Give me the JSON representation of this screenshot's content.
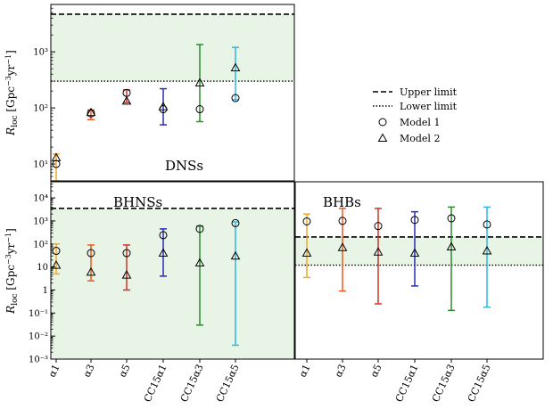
{
  "chart_data": [
    {
      "type": "scatter",
      "panel": "dns",
      "title": "DNSs",
      "ylabel": "R_loc [Gpc^-3 yr^-1]",
      "yscale": "log",
      "ylim": [
        5,
        7000
      ],
      "yticks": [
        {
          "v": 10,
          "label": "10¹"
        },
        {
          "v": 100,
          "label": "10²"
        },
        {
          "v": 1000,
          "label": "10³"
        }
      ],
      "categories": [
        "α1",
        "α3",
        "α5",
        "CC15α1",
        "CC15α3",
        "CC15α5"
      ],
      "colors": [
        "#f5a623",
        "#f0591e",
        "#d0352b",
        "#2a2db5",
        "#2e8b2e",
        "#2eb6e8"
      ],
      "upper_limit": 4700,
      "lower_limit": 300,
      "series": [
        {
          "name": "Model 1",
          "marker": "circle",
          "values": [
            10,
            80,
            185,
            95,
            95,
            150
          ]
        },
        {
          "name": "Model 2",
          "marker": "triangle",
          "values": [
            13,
            83,
            133,
            105,
            280,
            520
          ]
        }
      ],
      "errors": [
        {
          "lo": 5,
          "hi": 15
        },
        {
          "lo": 62,
          "hi": 92
        },
        {
          "lo": 125,
          "hi": 210
        },
        {
          "lo": 50,
          "hi": 220
        },
        {
          "lo": 57,
          "hi": 1350
        },
        {
          "lo": 140,
          "hi": 1200
        }
      ]
    },
    {
      "type": "scatter",
      "panel": "bhns",
      "title": "BHNSs",
      "ylabel": "R_loc [Gpc^-3 yr^-1]",
      "yscale": "log",
      "ylim": [
        0.001,
        50000
      ],
      "yticks": [
        {
          "v": 0.001,
          "label": "10⁻³"
        },
        {
          "v": 0.01,
          "label": "10⁻²"
        },
        {
          "v": 0.1,
          "label": "10⁻¹"
        },
        {
          "v": 1,
          "label": "1"
        },
        {
          "v": 10,
          "label": "10"
        },
        {
          "v": 100,
          "label": "10²"
        },
        {
          "v": 1000,
          "label": "10³"
        },
        {
          "v": 10000,
          "label": "10⁴"
        }
      ],
      "categories": [
        "α1",
        "α3",
        "α5",
        "CC15α1",
        "CC15α3",
        "CC15α5"
      ],
      "colors": [
        "#f5a623",
        "#f0591e",
        "#d0352b",
        "#2a2db5",
        "#2e8b2e",
        "#2eb6e8"
      ],
      "upper_limit": 3500,
      "lower_limit": null,
      "series": [
        {
          "name": "Model 1",
          "marker": "circle",
          "values": [
            50,
            40,
            40,
            240,
            450,
            800
          ]
        },
        {
          "name": "Model 2",
          "marker": "triangle",
          "values": [
            12,
            6,
            4.5,
            40,
            15,
            30
          ]
        }
      ],
      "errors": [
        {
          "lo": 5,
          "hi": 100
        },
        {
          "lo": 2.5,
          "hi": 90
        },
        {
          "lo": 1,
          "hi": 90
        },
        {
          "lo": 4,
          "hi": 450
        },
        {
          "lo": 0.03,
          "hi": 600
        },
        {
          "lo": 0.004,
          "hi": 900
        }
      ]
    },
    {
      "type": "scatter",
      "panel": "bhb",
      "title": "BHBs",
      "yscale": "log",
      "ylim": [
        0.001,
        50000
      ],
      "categories": [
        "α1",
        "α3",
        "α5",
        "CC15α1",
        "CC15α3",
        "CC15α5"
      ],
      "colors": [
        "#f5a623",
        "#f0591e",
        "#d0352b",
        "#2a2db5",
        "#2e8b2e",
        "#2eb6e8"
      ],
      "upper_limit": 200,
      "lower_limit": 12,
      "series": [
        {
          "name": "Model 1",
          "marker": "circle",
          "values": [
            950,
            1000,
            600,
            1100,
            1300,
            700
          ]
        },
        {
          "name": "Model 2",
          "marker": "triangle",
          "values": [
            40,
            70,
            45,
            40,
            75,
            50
          ]
        }
      ],
      "errors": [
        {
          "lo": 3.5,
          "hi": 2000
        },
        {
          "lo": 0.9,
          "hi": 3500
        },
        {
          "lo": 0.25,
          "hi": 3500
        },
        {
          "lo": 1.5,
          "hi": 2500
        },
        {
          "lo": 0.13,
          "hi": 4000
        },
        {
          "lo": 0.18,
          "hi": 4000
        }
      ]
    }
  ],
  "legend": {
    "placement": "center-right",
    "entries": [
      {
        "label": "Upper limit",
        "style": "dashed"
      },
      {
        "label": "Lower limit",
        "style": "dotted"
      },
      {
        "label": "Model 1",
        "style": "circle"
      },
      {
        "label": "Model 2",
        "style": "triangle"
      }
    ]
  },
  "styles": {
    "band_color": "#e8f4e6",
    "line_color": "#000000"
  }
}
